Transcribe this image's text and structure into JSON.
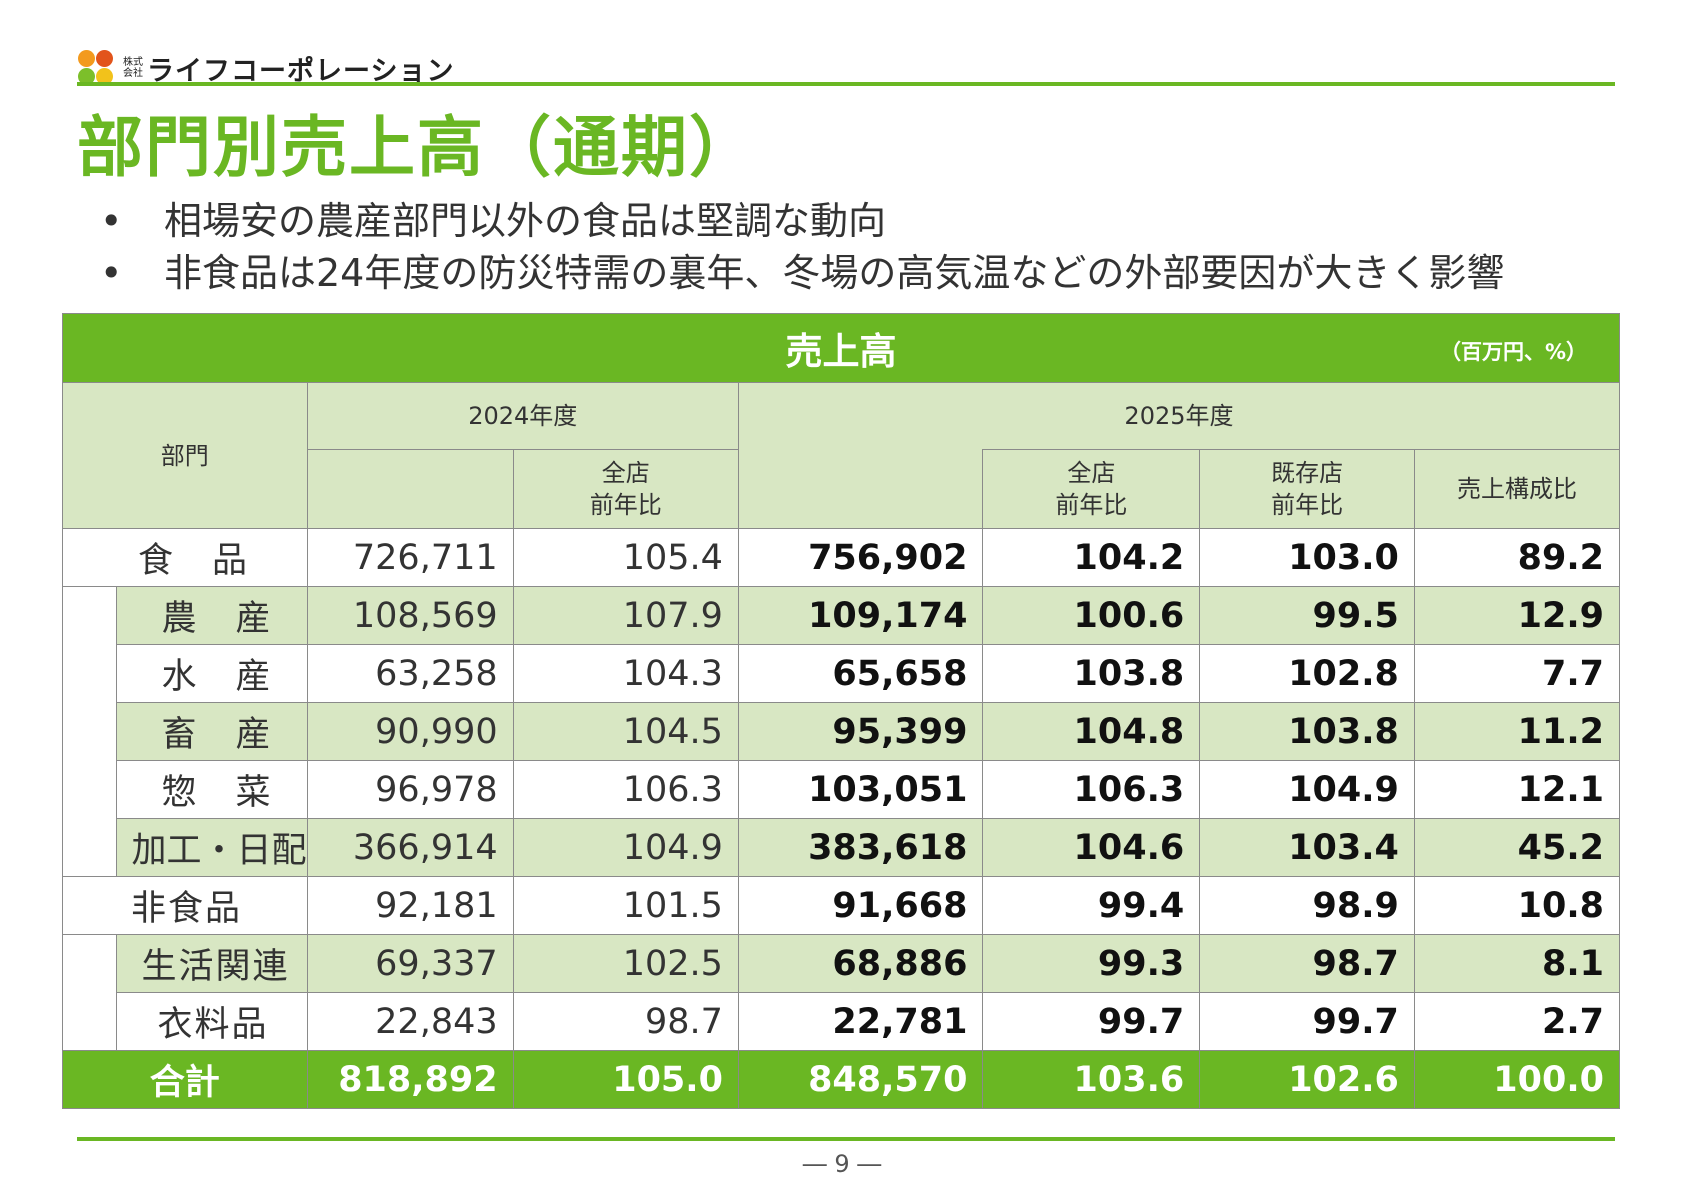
{
  "header": {
    "logo_small": "株式会社",
    "logo_name": "ライフコーポレーション",
    "colors": {
      "brand_green": "#6ab723",
      "light_green": "#d8e7c3"
    }
  },
  "page": {
    "title": "部門別売上高（通期）",
    "bullets": [
      "相場安の農産部門以外の食品は堅調な動向",
      "非食品は24年度の防災特需の裏年、冬場の高気温などの外部要因が大きく影響"
    ],
    "page_number": "― 9 ―"
  },
  "table": {
    "title": "売上高",
    "unit": "（百万円、%）",
    "headers": {
      "dept": "部門",
      "fy2024": "2024年度",
      "fy2025": "2025年度",
      "all_store_yoy_l1": "全店",
      "all_store_yoy_l2": "前年比",
      "existing_yoy_l1": "既存店",
      "existing_yoy_l2": "前年比",
      "composition": "売上構成比"
    },
    "rows": [
      {
        "name": "食　品",
        "sales_2024": "726,711",
        "yoy_2024": "105.4",
        "sales_2025": "756,902",
        "yoy_all_2025": "104.2",
        "yoy_existing_2025": "103.0",
        "share_2025": "89.2"
      },
      {
        "name": "農　産",
        "sales_2024": "108,569",
        "yoy_2024": "107.9",
        "sales_2025": "109,174",
        "yoy_all_2025": "100.6",
        "yoy_existing_2025": "99.5",
        "share_2025": "12.9"
      },
      {
        "name": "水　産",
        "sales_2024": "63,258",
        "yoy_2024": "104.3",
        "sales_2025": "65,658",
        "yoy_all_2025": "103.8",
        "yoy_existing_2025": "102.8",
        "share_2025": "7.7"
      },
      {
        "name": "畜　産",
        "sales_2024": "90,990",
        "yoy_2024": "104.5",
        "sales_2025": "95,399",
        "yoy_all_2025": "104.8",
        "yoy_existing_2025": "103.8",
        "share_2025": "11.2"
      },
      {
        "name": "惣　菜",
        "sales_2024": "96,978",
        "yoy_2024": "106.3",
        "sales_2025": "103,051",
        "yoy_all_2025": "106.3",
        "yoy_existing_2025": "104.9",
        "share_2025": "12.1"
      },
      {
        "name": "加工・日配",
        "sales_2024": "366,914",
        "yoy_2024": "104.9",
        "sales_2025": "383,618",
        "yoy_all_2025": "104.6",
        "yoy_existing_2025": "103.4",
        "share_2025": "45.2"
      },
      {
        "name": "非食品",
        "sales_2024": "92,181",
        "yoy_2024": "101.5",
        "sales_2025": "91,668",
        "yoy_all_2025": "99.4",
        "yoy_existing_2025": "98.9",
        "share_2025": "10.8"
      },
      {
        "name": "生活関連",
        "sales_2024": "69,337",
        "yoy_2024": "102.5",
        "sales_2025": "68,886",
        "yoy_all_2025": "99.3",
        "yoy_existing_2025": "98.7",
        "share_2025": "8.1"
      },
      {
        "name": "衣料品",
        "sales_2024": "22,843",
        "yoy_2024": "98.7",
        "sales_2025": "22,781",
        "yoy_all_2025": "99.7",
        "yoy_existing_2025": "99.7",
        "share_2025": "2.7"
      }
    ],
    "total": {
      "name": "合計",
      "sales_2024": "818,892",
      "yoy_2024": "105.0",
      "sales_2025": "848,570",
      "yoy_all_2025": "103.6",
      "yoy_existing_2025": "102.6",
      "share_2025": "100.0"
    }
  }
}
